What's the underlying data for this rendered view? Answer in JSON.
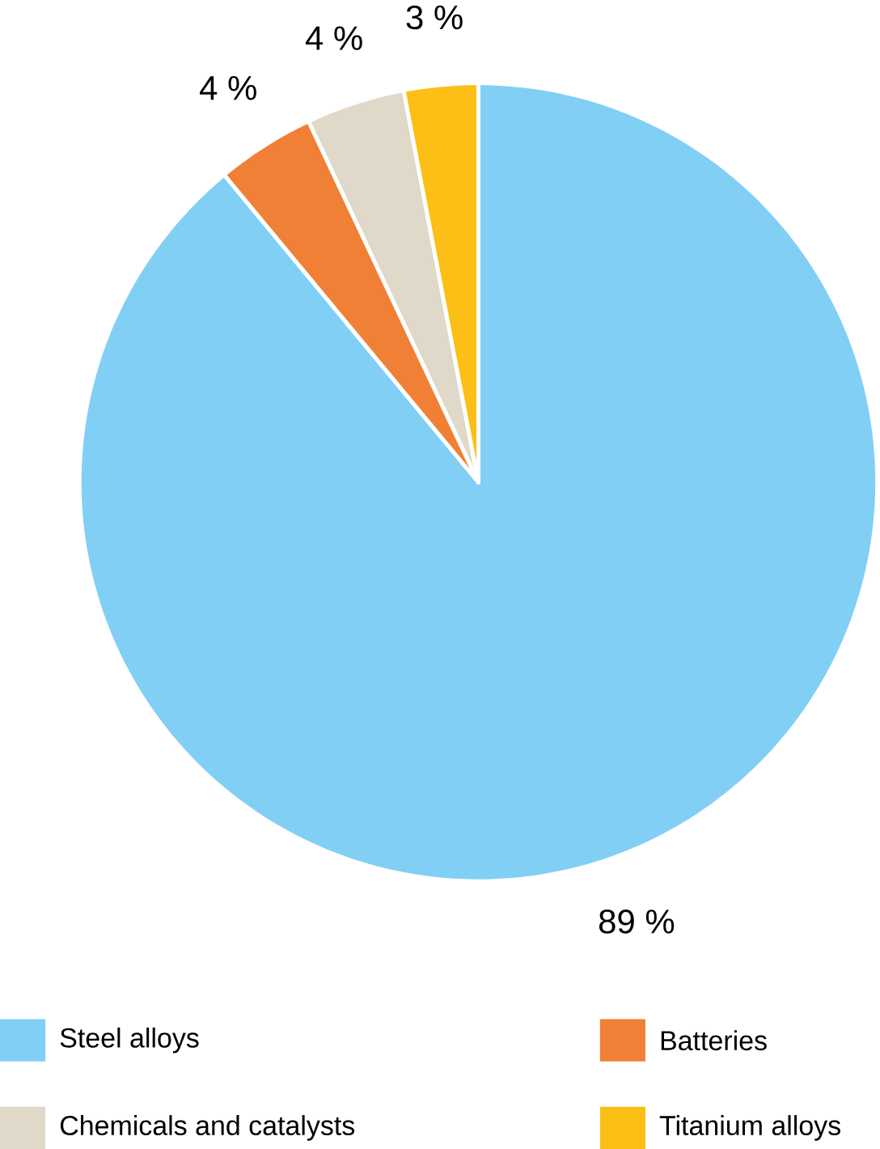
{
  "chart_data": {
    "type": "pie",
    "categories": [
      "Steel alloys",
      "Batteries",
      "Chemicals and catalysts",
      "Titanium alloys"
    ],
    "values": [
      89,
      4,
      4,
      3
    ],
    "colors": [
      "#81cff4",
      "#f08035",
      "#e0d8c8",
      "#fbbf15"
    ],
    "value_labels": [
      "89 %",
      "4 %",
      "4 %",
      "3 %"
    ],
    "legend": "bottom"
  }
}
